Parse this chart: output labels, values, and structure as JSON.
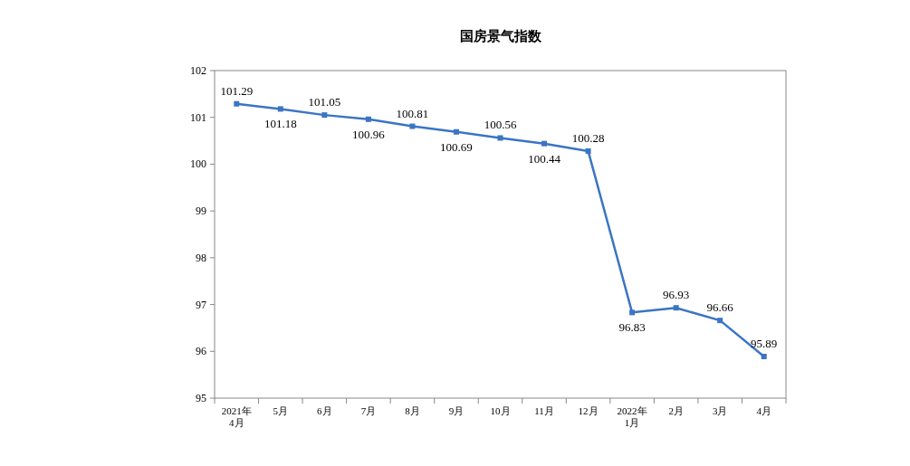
{
  "chart_data": {
    "type": "line",
    "title": "国房景气指数",
    "categories": [
      "2021年\n4月",
      "5月",
      "6月",
      "7月",
      "8月",
      "9月",
      "10月",
      "11月",
      "12月",
      "2022年\n1月",
      "2月",
      "3月",
      "4月"
    ],
    "series": [
      {
        "color": "#3a75c4",
        "values": [
          101.29,
          101.18,
          101.05,
          100.96,
          100.81,
          100.69,
          100.56,
          100.44,
          100.28,
          96.83,
          96.93,
          96.66,
          95.89
        ]
      }
    ],
    "ylim": [
      95,
      102
    ],
    "yticks": [
      95,
      96,
      97,
      98,
      99,
      100,
      101,
      102
    ],
    "data_labels": true,
    "marker": "square"
  }
}
